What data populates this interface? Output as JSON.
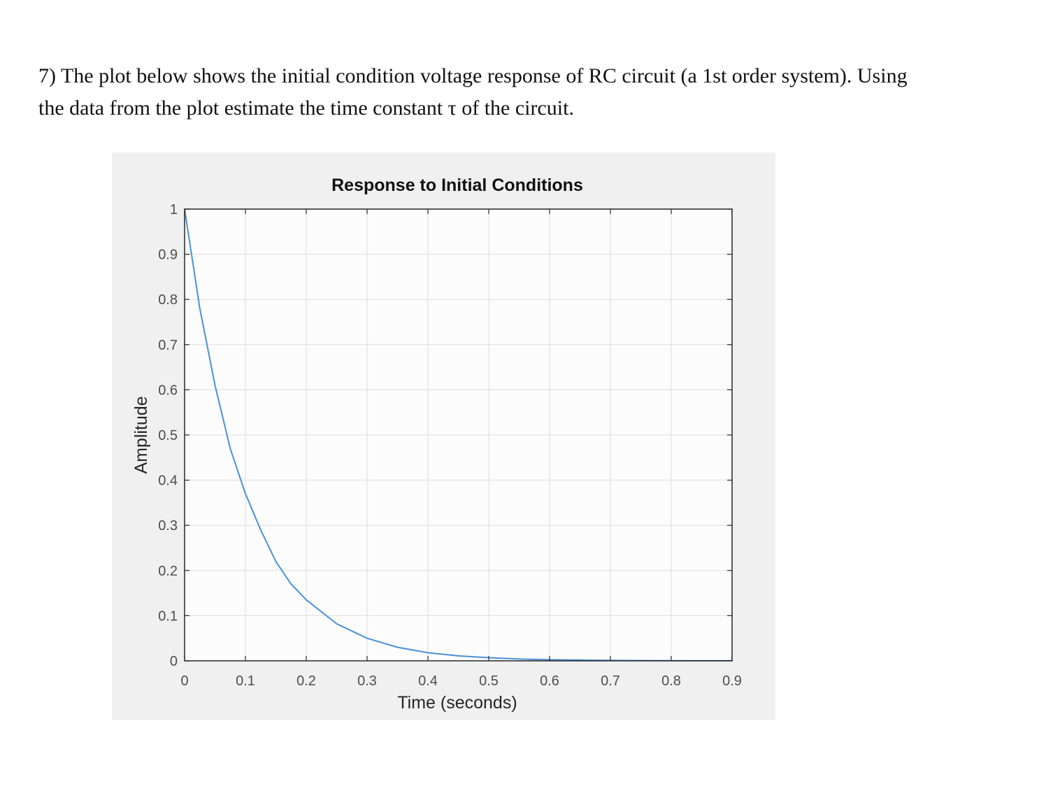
{
  "question": {
    "line1": "7) The plot below shows the initial condition voltage response of RC circuit (a 1st order system). Using",
    "line2": "the data from the plot estimate the time constant τ of the circuit."
  },
  "colors": {
    "figure_bg": "#f0f0f0",
    "axes_bg": "#fcfcfc",
    "grid": "#dfdfdf",
    "axis": "#262626",
    "series": "#4a90d9"
  },
  "chart_data": {
    "type": "line",
    "title": "Response to Initial Conditions",
    "xlabel": "Time (seconds)",
    "ylabel": "Amplitude",
    "xlim": [
      0,
      0.9
    ],
    "ylim": [
      0,
      1
    ],
    "grid": true,
    "x_ticks": [
      "0",
      "0.1",
      "0.2",
      "0.3",
      "0.4",
      "0.5",
      "0.6",
      "0.7",
      "0.8",
      "0.9"
    ],
    "y_ticks": [
      "0",
      "0.1",
      "0.2",
      "0.3",
      "0.4",
      "0.5",
      "0.6",
      "0.7",
      "0.8",
      "0.9",
      "1"
    ],
    "series": [
      {
        "x": [
          0,
          0.025,
          0.05,
          0.075,
          0.1,
          0.125,
          0.15,
          0.175,
          0.2,
          0.25,
          0.3,
          0.35,
          0.4,
          0.45,
          0.5,
          0.55,
          0.6,
          0.7,
          0.8,
          0.9
        ],
        "y": [
          1.0,
          0.78,
          0.61,
          0.47,
          0.37,
          0.29,
          0.22,
          0.17,
          0.135,
          0.082,
          0.05,
          0.03,
          0.018,
          0.011,
          0.007,
          0.004,
          0.0025,
          0.0009,
          0.0003,
          0.0001
        ]
      }
    ]
  }
}
